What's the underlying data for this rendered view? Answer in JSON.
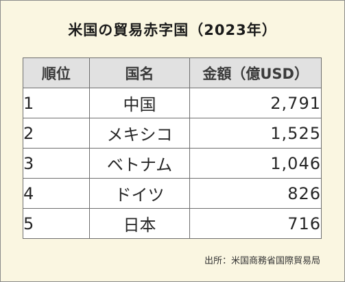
{
  "title": "米国の貿易赤字国（2023年）",
  "table": {
    "headers": [
      "順位",
      "国名",
      "金額（億USD）"
    ],
    "rows": [
      {
        "rank": "1",
        "country": "中国",
        "amount": "2,791"
      },
      {
        "rank": "2",
        "country": "メキシコ",
        "amount": "1,525"
      },
      {
        "rank": "3",
        "country": "ベトナム",
        "amount": "1,046"
      },
      {
        "rank": "4",
        "country": "ドイツ",
        "amount": "826"
      },
      {
        "rank": "5",
        "country": "日本",
        "amount": "716"
      }
    ]
  },
  "source": "出所：米国商務省国際貿易局",
  "colors": {
    "background": "#faf6e1",
    "header_fill": "#e1e1e1",
    "border": "#6d6d6d"
  }
}
